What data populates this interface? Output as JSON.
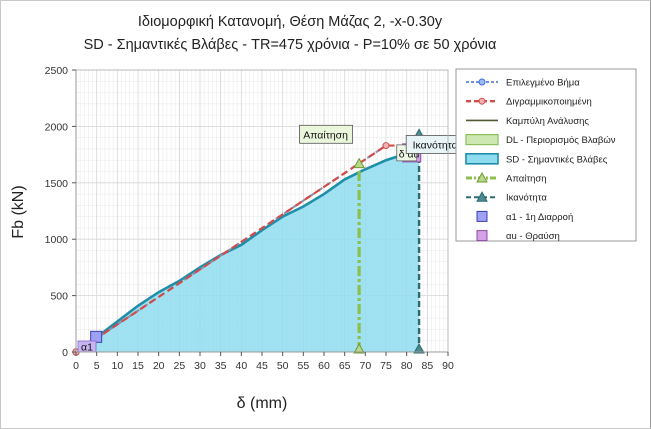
{
  "chart_data": {
    "type": "area",
    "title": "Ιδιομορφική Κατανομή, Θέση Μάζας 2, -x-0.30y",
    "subtitle": "SD - Σημαντικές Βλάβες - TR=475 χρόνια - P=10% σε 50 χρόνια",
    "xlabel": "δ (mm)",
    "ylabel": "Fb (kN)",
    "xlim": [
      0,
      90
    ],
    "ylim": [
      0,
      2500
    ],
    "x_ticks": [
      "0",
      "5",
      "10",
      "15",
      "20",
      "25",
      "30",
      "35",
      "40",
      "45",
      "50",
      "55",
      "60",
      "65",
      "70",
      "75",
      "80",
      "85",
      "90"
    ],
    "y_ticks": [
      "0",
      "500",
      "1000",
      "1500",
      "2000",
      "2500"
    ],
    "grid": true,
    "legend_position": "right",
    "legend": [
      {
        "key": "selected_step",
        "label": "Επιλεγμένο Βήμα",
        "color": "#3b6fd6"
      },
      {
        "key": "bilinear",
        "label": "Διγραμμικοποιημένη",
        "color": "#d24b4b"
      },
      {
        "key": "pushover",
        "label": "Καμπύλη Ανάλυσης",
        "color": "#4f5a32"
      },
      {
        "key": "dl",
        "label": "DL - Περιορισμός Βλαβών",
        "color": "#cde8b0"
      },
      {
        "key": "sd",
        "label": "SD - Σημαντικές Βλάβες",
        "color": "#8fdcf0"
      },
      {
        "key": "demand",
        "label": "Απαίτηση",
        "color": "#8cc04a"
      },
      {
        "key": "capacity",
        "label": "Ικανότητα",
        "color": "#2c6a70"
      },
      {
        "key": "a1",
        "label": "α1 - 1η Διαρροή",
        "color": "#9ea2f4"
      },
      {
        "key": "au",
        "label": "αu - Θραύση",
        "color": "#d6a0e8"
      }
    ],
    "series": [
      {
        "key": "pushover",
        "x": [
          0,
          2,
          5,
          10,
          15,
          20,
          25,
          30,
          35,
          40,
          45,
          50,
          55,
          60,
          65,
          70,
          75,
          80,
          83
        ],
        "y": [
          0,
          50,
          130,
          270,
          410,
          530,
          630,
          750,
          860,
          950,
          1080,
          1200,
          1290,
          1400,
          1530,
          1620,
          1700,
          1760,
          1780
        ],
        "fill_color": "#8fdcf0",
        "line_color": "#1f8ea8"
      },
      {
        "key": "bilinear",
        "x": [
          0,
          75,
          83
        ],
        "y": [
          0,
          1830,
          1830
        ],
        "color": "#d24b4b"
      },
      {
        "key": "selected_step",
        "x": [
          0,
          75
        ],
        "y": [
          0,
          1830
        ],
        "color": "#6a8fd6"
      },
      {
        "key": "demand",
        "x": [
          68.5,
          68.5
        ],
        "y": [
          0,
          1670
        ],
        "color": "#8cc04a"
      },
      {
        "key": "capacity",
        "x": [
          83,
          83
        ],
        "y": [
          0,
          1930
        ],
        "color": "#2c6a70"
      }
    ],
    "markers": [
      {
        "key": "a1",
        "x": 5,
        "y": 130,
        "label": "α1"
      },
      {
        "key": "au",
        "x": 80.5,
        "y": 1730,
        "label": "δ αu"
      },
      {
        "key": "bilinear_point",
        "x": 75,
        "y": 1830
      }
    ],
    "annotations": [
      {
        "key": "demand_label",
        "text": "Απαίτηση",
        "x": 64.5,
        "y": 1930
      },
      {
        "key": "capacity_label",
        "text": "Ικανότητα",
        "x": 84,
        "y": 1840
      }
    ]
  }
}
